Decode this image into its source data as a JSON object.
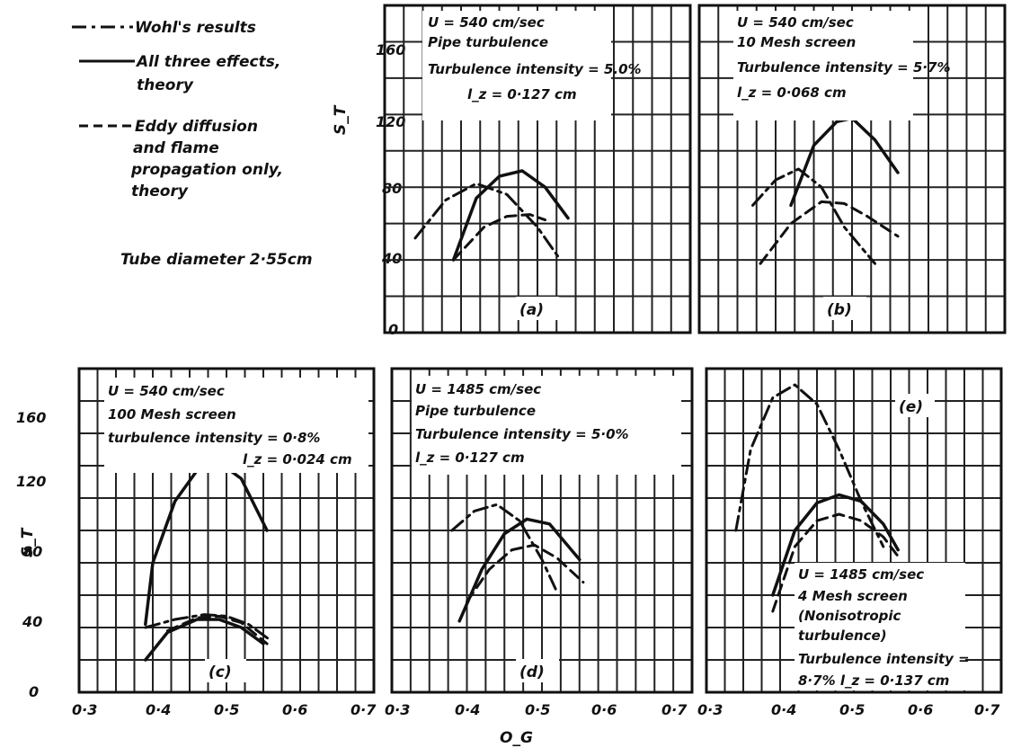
{
  "legend": {
    "items": [
      {
        "style": "dash-dot",
        "text": "Wohl's results"
      },
      {
        "style": "solid",
        "text": "All three effects,",
        "text2": "theory"
      },
      {
        "style": "dashed",
        "text": "Eddy diffusion",
        "text2": "and flame",
        "text3": "propagation only,",
        "text4": "theory"
      }
    ],
    "tube_note": "Tube diameter 2·55cm"
  },
  "axis_labels": {
    "ylabel": "S_T",
    "xlabel": "O_G",
    "x_ticks": [
      "0·3",
      "0·4",
      "0·5",
      "0·6",
      "0·7"
    ],
    "y_ticks_top": [
      "0",
      "40",
      "80",
      "120",
      "160"
    ],
    "y_ticks_bottom": [
      "0",
      "40",
      "80",
      "120",
      "160"
    ]
  },
  "panels_text": {
    "a": {
      "label": "(a)",
      "lines": [
        "U = 540 cm/sec",
        "Pipe turbulence",
        "Turbulence intensity = 5.0%",
        "l_z = 0·127 cm"
      ]
    },
    "b": {
      "label": "(b)",
      "lines": [
        "U = 540 cm/sec",
        "10 Mesh screen",
        "Turbulence intensity = 5·7%",
        "l_z = 0·068 cm"
      ]
    },
    "c": {
      "label": "(c)",
      "lines": [
        "U = 540 cm/sec",
        "100 Mesh screen",
        "turbulence intensity = 0·8%",
        "l_z = 0·024 cm"
      ]
    },
    "d": {
      "label": "(d)",
      "lines": [
        "U = 1485 cm/sec",
        "Pipe turbulence",
        "Turbulence intensity = 5·0%",
        "l_z = 0·127 cm"
      ]
    },
    "e": {
      "label": "(e)",
      "lines": [
        "U = 1485 cm/sec",
        "4 Mesh screen",
        "(Nonisotropic",
        "turbulence)",
        "Turbulence intensity =",
        "8·7%   l_z = 0·137 cm"
      ]
    }
  },
  "chart_data": [
    {
      "id": "a",
      "type": "line",
      "xlim": [
        0.3,
        0.7
      ],
      "ylim": [
        0,
        180
      ],
      "grid": true,
      "series": [
        {
          "style": "dash-dot",
          "x": [
            0.34,
            0.38,
            0.42,
            0.46,
            0.5,
            0.53
          ],
          "y": [
            52,
            73,
            82,
            76,
            58,
            40
          ]
        },
        {
          "style": "solid",
          "x": [
            0.39,
            0.42,
            0.45,
            0.48,
            0.51,
            0.54
          ],
          "y": [
            40,
            74,
            86,
            89,
            80,
            63
          ]
        },
        {
          "style": "dashed",
          "x": [
            0.39,
            0.43,
            0.46,
            0.49,
            0.51
          ],
          "y": [
            40,
            58,
            64,
            65,
            62
          ]
        }
      ]
    },
    {
      "id": "b",
      "type": "line",
      "xlim": [
        0.3,
        0.7
      ],
      "ylim": [
        0,
        180
      ],
      "grid": true,
      "series": [
        {
          "style": "dash-dot",
          "x": [
            0.37,
            0.4,
            0.43,
            0.46,
            0.49,
            0.53
          ],
          "y": [
            70,
            84,
            90,
            80,
            58,
            38
          ]
        },
        {
          "style": "solid",
          "x": [
            0.42,
            0.45,
            0.48,
            0.5,
            0.53,
            0.56
          ],
          "y": [
            70,
            103,
            116,
            118,
            106,
            88
          ]
        },
        {
          "style": "dashed",
          "x": [
            0.38,
            0.42,
            0.46,
            0.49,
            0.52,
            0.56
          ],
          "y": [
            38,
            60,
            72,
            71,
            64,
            53
          ]
        }
      ]
    },
    {
      "id": "c",
      "type": "line",
      "xlim": [
        0.3,
        0.7
      ],
      "ylim": [
        0,
        200
      ],
      "grid": true,
      "series": [
        {
          "style": "dash-dot",
          "x": [
            0.39,
            0.43,
            0.47,
            0.5,
            0.53,
            0.56
          ],
          "y": [
            40,
            45,
            48,
            47,
            42,
            32
          ]
        },
        {
          "style": "solid",
          "x": [
            0.39,
            0.4,
            0.43,
            0.46,
            0.49,
            0.52,
            0.555
          ],
          "y": [
            42,
            80,
            118,
            137,
            142,
            132,
            100
          ]
        },
        {
          "style": "solid",
          "x": [
            0.39,
            0.42,
            0.46,
            0.49,
            0.52,
            0.55
          ],
          "y": [
            20,
            37,
            45,
            45,
            40,
            30
          ]
        },
        {
          "style": "dashed",
          "x": [
            0.42,
            0.46,
            0.49,
            0.52,
            0.555
          ],
          "y": [
            38,
            46,
            47,
            43,
            30
          ]
        }
      ]
    },
    {
      "id": "d",
      "type": "line",
      "xlim": [
        0.3,
        0.7
      ],
      "ylim": [
        0,
        200
      ],
      "grid": true,
      "series": [
        {
          "style": "dash-dot",
          "x": [
            0.38,
            0.41,
            0.44,
            0.47,
            0.5,
            0.52
          ],
          "y": [
            100,
            112,
            116,
            106,
            82,
            62
          ]
        },
        {
          "style": "solid",
          "x": [
            0.39,
            0.42,
            0.45,
            0.48,
            0.51,
            0.55
          ],
          "y": [
            44,
            76,
            98,
            107,
            104,
            82
          ]
        },
        {
          "style": "dashed",
          "x": [
            0.4,
            0.43,
            0.46,
            0.49,
            0.52,
            0.555
          ],
          "y": [
            56,
            76,
            88,
            91,
            83,
            68
          ]
        }
      ]
    },
    {
      "id": "e",
      "type": "line",
      "xlim": [
        0.3,
        0.7
      ],
      "ylim": [
        0,
        200
      ],
      "grid": true,
      "series": [
        {
          "style": "dash-dot",
          "x": [
            0.34,
            0.36,
            0.39,
            0.42,
            0.45,
            0.48,
            0.51,
            0.54
          ],
          "y": [
            100,
            150,
            182,
            190,
            178,
            150,
            118,
            90
          ]
        },
        {
          "style": "solid",
          "x": [
            0.39,
            0.42,
            0.45,
            0.48,
            0.51,
            0.54,
            0.56
          ],
          "y": [
            60,
            100,
            117,
            122,
            118,
            104,
            88
          ]
        },
        {
          "style": "dashed",
          "x": [
            0.39,
            0.42,
            0.45,
            0.48,
            0.51,
            0.54,
            0.56
          ],
          "y": [
            50,
            90,
            106,
            110,
            106,
            96,
            84
          ]
        }
      ]
    }
  ]
}
